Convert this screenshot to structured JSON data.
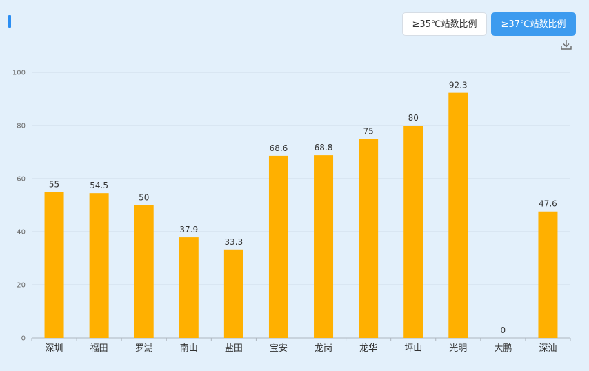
{
  "toggle": {
    "option_35_label": "≥35℃站数比例",
    "option_37_label": "≥37℃站数比例",
    "active": "option_37"
  },
  "colors": {
    "accent": "#2b8ef3",
    "bar": "#ffb000",
    "active_button": "#3d9bef",
    "background": "#e3f0fb"
  },
  "icons": {
    "download": "download-icon"
  },
  "chart_data": {
    "type": "bar",
    "categories": [
      "深圳",
      "福田",
      "罗湖",
      "南山",
      "盐田",
      "宝安",
      "龙岗",
      "龙华",
      "坪山",
      "光明",
      "大鹏",
      "深汕"
    ],
    "values": [
      55,
      54.5,
      50,
      37.9,
      33.3,
      68.6,
      68.8,
      75,
      80,
      92.3,
      0,
      47.6
    ],
    "ylim": [
      0,
      100
    ],
    "yticks": [
      0,
      20,
      40,
      60,
      80,
      100
    ],
    "grid": true,
    "legend": "none",
    "data_labels": true
  }
}
